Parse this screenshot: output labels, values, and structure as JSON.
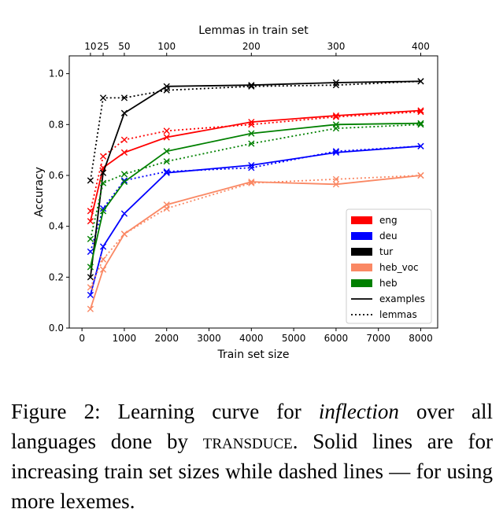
{
  "chart_data": {
    "type": "line",
    "title": "",
    "xlabel": "Train set size",
    "ylabel": "Accuracy",
    "top_axis_label": "Lemmas in train set",
    "xlim": [
      -300,
      8400
    ],
    "ylim": [
      0,
      1.07
    ],
    "x_ticks": [
      0,
      1000,
      2000,
      3000,
      4000,
      5000,
      6000,
      7000,
      8000
    ],
    "x_tick_labels": [
      "0",
      "1000",
      "2000",
      "3000",
      "4000",
      "5000",
      "6000",
      "7000",
      "8000"
    ],
    "y_ticks": [
      0,
      0.2,
      0.4,
      0.6,
      0.8,
      1.0
    ],
    "y_tick_labels": [
      "0.0",
      "0.2",
      "0.4",
      "0.6",
      "0.8",
      "1.0"
    ],
    "top_ticks": [
      {
        "x": 200,
        "label": "10"
      },
      {
        "x": 500,
        "label": "25"
      },
      {
        "x": 1000,
        "label": "50"
      },
      {
        "x": 2000,
        "label": "100"
      },
      {
        "x": 4000,
        "label": "200"
      },
      {
        "x": 6000,
        "label": "300"
      },
      {
        "x": 8000,
        "label": "400"
      }
    ],
    "x": [
      200,
      500,
      1000,
      2000,
      4000,
      6000,
      8000
    ],
    "series": [
      {
        "name": "eng",
        "color": "#ff0000",
        "examples": [
          0.42,
          0.63,
          0.69,
          0.75,
          0.81,
          0.835,
          0.855
        ],
        "lemmas": [
          0.46,
          0.675,
          0.74,
          0.775,
          0.8,
          0.83,
          0.85
        ]
      },
      {
        "name": "deu",
        "color": "#0000ff",
        "examples": [
          0.13,
          0.32,
          0.45,
          0.61,
          0.64,
          0.69,
          0.715
        ],
        "lemmas": [
          0.3,
          0.47,
          0.58,
          0.615,
          0.63,
          0.695,
          0.715
        ]
      },
      {
        "name": "tur",
        "color": "#000000",
        "examples": [
          0.2,
          0.61,
          0.845,
          0.95,
          0.955,
          0.965,
          0.97
        ],
        "lemmas": [
          0.58,
          0.905,
          0.905,
          0.935,
          0.95,
          0.955,
          0.97
        ]
      },
      {
        "name": "heb_voc",
        "color": "#fa8864",
        "examples": [
          0.075,
          0.23,
          0.37,
          0.485,
          0.575,
          0.565,
          0.6
        ],
        "lemmas": [
          0.16,
          0.27,
          0.37,
          0.47,
          0.57,
          0.585,
          0.6
        ]
      },
      {
        "name": "heb",
        "color": "#008000",
        "examples": [
          0.24,
          0.46,
          0.575,
          0.695,
          0.765,
          0.8,
          0.805
        ],
        "lemmas": [
          0.35,
          0.57,
          0.605,
          0.655,
          0.725,
          0.785,
          0.8
        ]
      }
    ],
    "legend": {
      "placement": "lower-right",
      "entries": [
        {
          "label": "eng",
          "kind": "patch",
          "color": "#ff0000"
        },
        {
          "label": "deu",
          "kind": "patch",
          "color": "#0000ff"
        },
        {
          "label": "tur",
          "kind": "patch",
          "color": "#000000"
        },
        {
          "label": "heb_voc",
          "kind": "patch",
          "color": "#fa8864"
        },
        {
          "label": "heb",
          "kind": "patch",
          "color": "#008000"
        },
        {
          "label": "examples",
          "kind": "solid-line",
          "color": "#000000"
        },
        {
          "label": "lemmas",
          "kind": "dotted-line",
          "color": "#000000"
        }
      ]
    }
  },
  "caption": {
    "lead": "Figure 2: Learning curve for ",
    "emph": "inflection",
    "mid": " over all languages done by ",
    "smallcaps": "transduce",
    "tail": ". Solid lines are for increasing train set sizes while dashed lines — for using more lexemes."
  }
}
